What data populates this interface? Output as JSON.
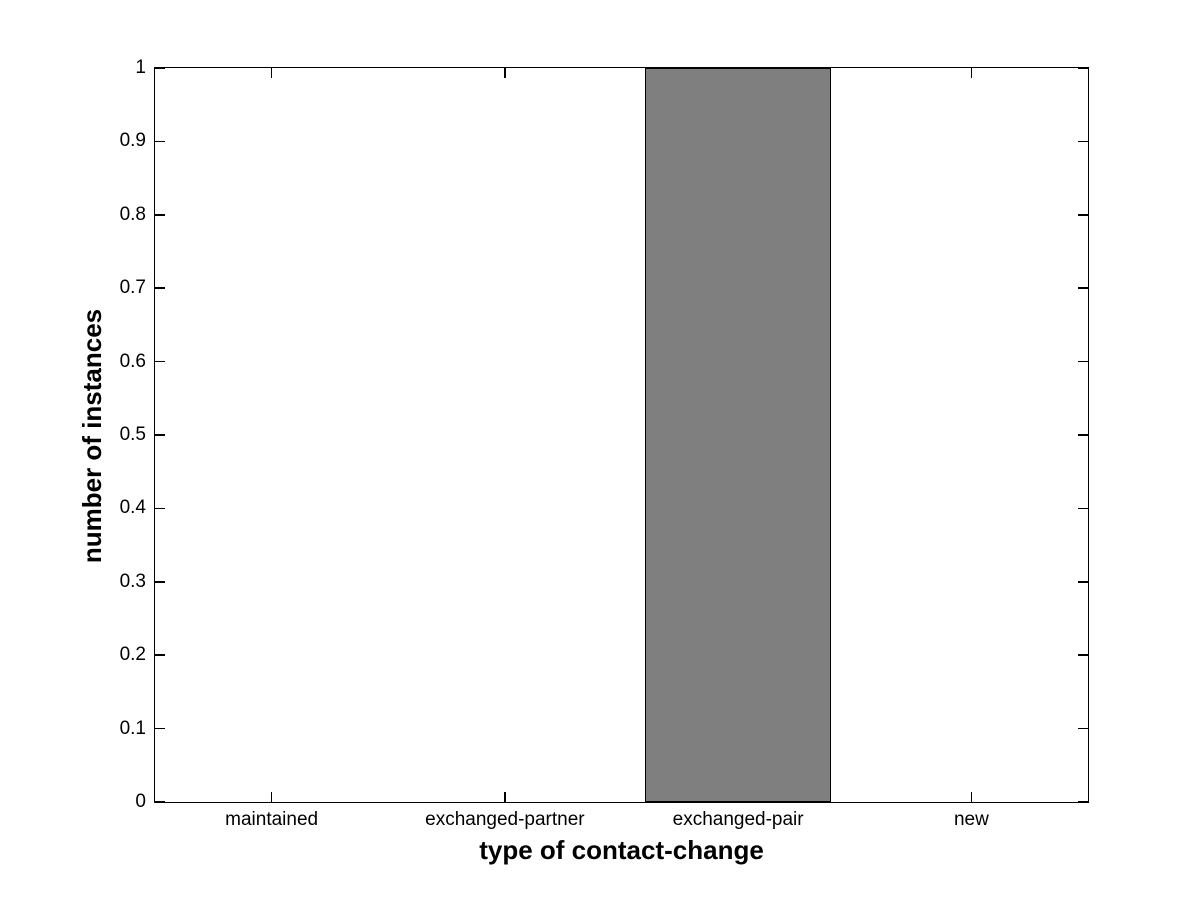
{
  "chart_data": {
    "type": "bar",
    "categories": [
      "maintained",
      "exchanged-partner",
      "exchanged-pair",
      "new"
    ],
    "values": [
      0,
      0,
      1,
      0
    ],
    "title": "",
    "xlabel": "type of contact-change",
    "ylabel": "number of instances",
    "ylim": [
      0,
      1
    ],
    "yticks": [
      0,
      0.1,
      0.2,
      0.3,
      0.4,
      0.5,
      0.6,
      0.7,
      0.8,
      0.9,
      1
    ],
    "ytick_labels": [
      "0",
      "0.1",
      "0.2",
      "0.3",
      "0.4",
      "0.5",
      "0.6",
      "0.7",
      "0.8",
      "0.9",
      "1"
    ],
    "bar_width_fraction": 0.8,
    "grid": false,
    "legend_position": "none",
    "colors": {
      "bar_fill": "#7f7f7f",
      "bar_edge": "#000000",
      "axis": "#000000",
      "background": "#ffffff",
      "text": "#000000"
    }
  }
}
